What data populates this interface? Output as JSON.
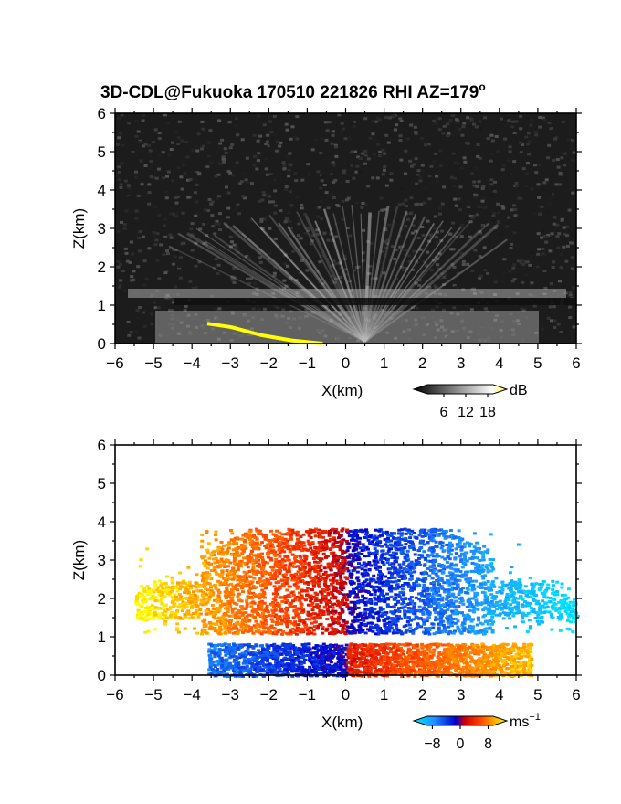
{
  "chart_data": [
    {
      "type": "heatmap",
      "title": "3D-CDL@Fukuoka 170510 221826 RHI AZ=179",
      "title_superscript": "o",
      "xlabel": "X(km)",
      "ylabel": "Z(km)",
      "xlim": [
        -6,
        6
      ],
      "ylim": [
        0,
        6
      ],
      "xticks": [
        "-6",
        "-5",
        "-4",
        "-3",
        "-2",
        "-1",
        "0",
        "1",
        "2",
        "3",
        "4",
        "5",
        "6"
      ],
      "yticks": [
        "0",
        "1",
        "2",
        "3",
        "4",
        "5",
        "6"
      ],
      "grid": false,
      "quantity": "signal intensity",
      "colormap": "grayscale",
      "colorbar": {
        "unit": "dB",
        "ticks": [
          "6",
          "12",
          "18"
        ],
        "range": [
          0,
          21
        ]
      },
      "features": {
        "beam_fan_center_x": 0.5,
        "beam_fan_top_z": 3.8,
        "bright_layer_z": 1.05,
        "boundary_layer_top_z": 0.9,
        "terrain_profile": [
          [
            -3.6,
            0.52
          ],
          [
            -3.0,
            0.43
          ],
          [
            -2.2,
            0.22
          ],
          [
            -1.4,
            0.08
          ],
          [
            -0.6,
            0.0
          ]
        ]
      }
    },
    {
      "type": "heatmap",
      "title": "",
      "xlabel": "X(km)",
      "ylabel": "Z(km)",
      "xlim": [
        -6,
        6
      ],
      "ylim": [
        0,
        6
      ],
      "xticks": [
        "-6",
        "-5",
        "-4",
        "-3",
        "-2",
        "-1",
        "0",
        "1",
        "2",
        "3",
        "4",
        "5",
        "6"
      ],
      "yticks": [
        "0",
        "1",
        "2",
        "3",
        "4",
        "5",
        "6"
      ],
      "grid": false,
      "quantity": "radial velocity",
      "colormap": "cyan-blue-red-orange-yellow",
      "colorbar": {
        "unit": "ms",
        "unit_superscript": "−1",
        "ticks": [
          "−8",
          "0",
          "8"
        ],
        "range": [
          -11,
          11
        ]
      },
      "features": {
        "upper_layer_z": [
          1.1,
          3.85
        ],
        "upper_layer_left": {
          "x": [
            -5.5,
            0
          ],
          "velocity": [
            11,
            1
          ]
        },
        "upper_layer_right": {
          "x": [
            0,
            6
          ],
          "velocity": [
            -1,
            -11
          ]
        },
        "lower_layer_z": [
          0.0,
          0.85
        ],
        "lower_layer_left": {
          "x": [
            -3.6,
            0
          ],
          "velocity": [
            -5,
            -1
          ]
        },
        "lower_layer_right": {
          "x": [
            0,
            4.8
          ],
          "velocity": [
            2,
            9
          ]
        }
      }
    }
  ]
}
